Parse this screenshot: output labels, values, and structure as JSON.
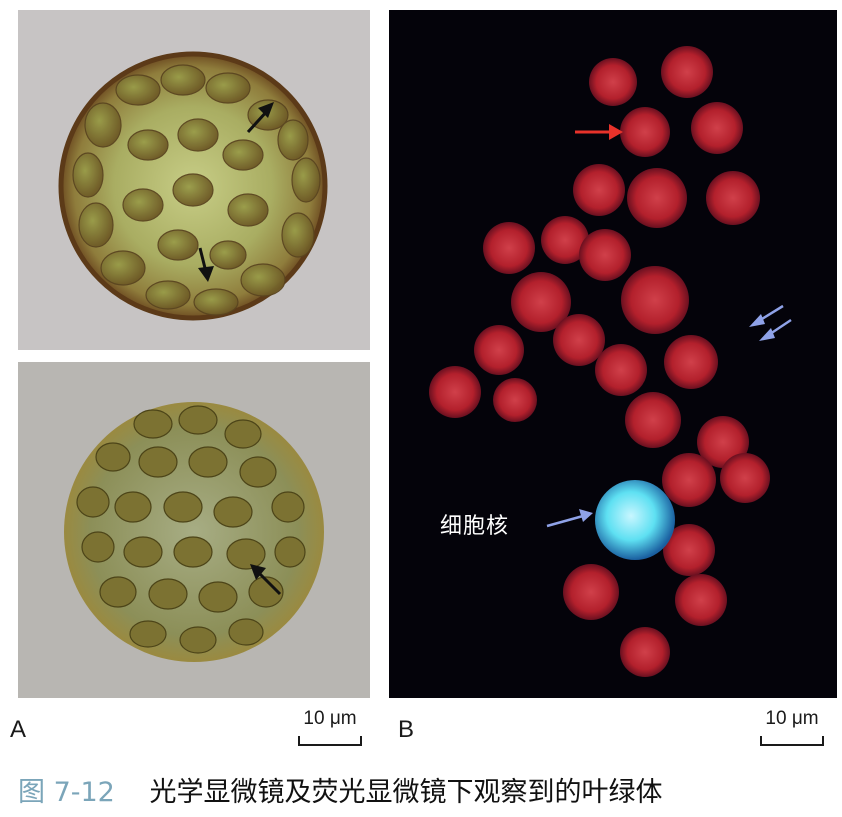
{
  "panel_labels": {
    "a": "A",
    "b": "B"
  },
  "scale_bars": {
    "a": "10 μm",
    "b": "10 μm"
  },
  "annotation": {
    "nucleus": "细胞核"
  },
  "caption": {
    "figure_number": "图 7-12",
    "text": "光学显微镜及荧光显微镜下观察到的叶绿体"
  },
  "colors": {
    "chloroplast_fluorescence": "#b3202c",
    "nucleus_fluorescence": "#5ee0f2",
    "fluorescence_background": "#04030a",
    "caption_figure_number": "#7ba5b9",
    "red_arrow": "#e8322a",
    "blue_arrow": "#8fa2e8"
  }
}
